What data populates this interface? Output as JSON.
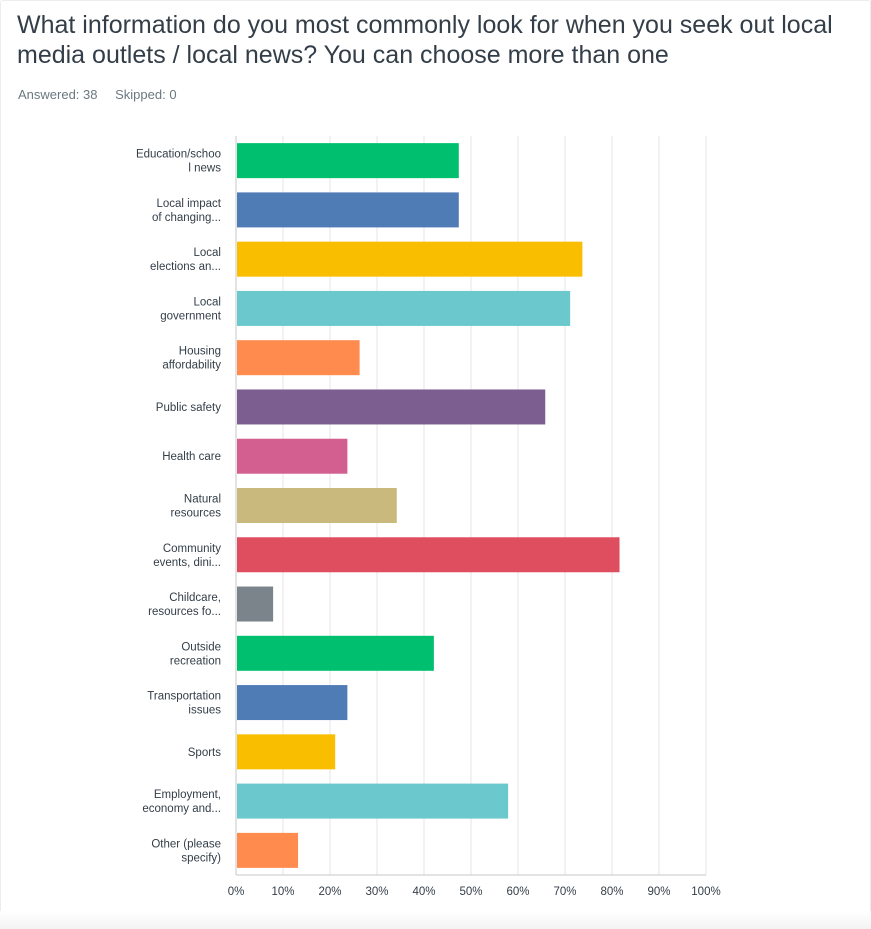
{
  "question": {
    "title": "What information do you most commonly look for when you seek out local media outlets / local news? You can choose more than one",
    "answered": "Answered: 38",
    "skipped": "Skipped: 0"
  },
  "chart_data": {
    "type": "bar",
    "orientation": "horizontal",
    "title": "What information do you most commonly look for when you seek out local media outlets / local news? You can choose more than one",
    "xlabel": "",
    "ylabel": "",
    "xlim": [
      0,
      100
    ],
    "grid": true,
    "ticks": [
      "0%",
      "10%",
      "20%",
      "30%",
      "40%",
      "50%",
      "60%",
      "70%",
      "80%",
      "90%",
      "100%"
    ],
    "categories": [
      [
        "Education/schoo",
        "l news"
      ],
      [
        "Local impact",
        "of changing..."
      ],
      [
        "Local",
        "elections an..."
      ],
      [
        "Local",
        "government"
      ],
      [
        "Housing",
        "affordability"
      ],
      [
        "Public safety"
      ],
      [
        "Health care"
      ],
      [
        "Natural",
        "resources"
      ],
      [
        "Community",
        "events, dini..."
      ],
      [
        "Childcare,",
        "resources fo..."
      ],
      [
        "Outside",
        "recreation"
      ],
      [
        "Transportation",
        "issues"
      ],
      [
        "Sports"
      ],
      [
        "Employment,",
        "economy and..."
      ],
      [
        "Other (please",
        "specify)"
      ]
    ],
    "values": [
      47.4,
      47.4,
      73.7,
      71.1,
      26.3,
      65.8,
      23.7,
      34.2,
      81.6,
      7.9,
      42.1,
      23.7,
      21.1,
      57.9,
      13.2
    ],
    "colors": [
      "#00bf6f",
      "#507cb6",
      "#f9be00",
      "#6bc8cd",
      "#ff8b4f",
      "#7d5e90",
      "#d25f90",
      "#c9b97d",
      "#de4e5f",
      "#7c848b",
      "#00bf6f",
      "#507cb6",
      "#f9be00",
      "#6bc8cd",
      "#ff8b4f"
    ]
  }
}
